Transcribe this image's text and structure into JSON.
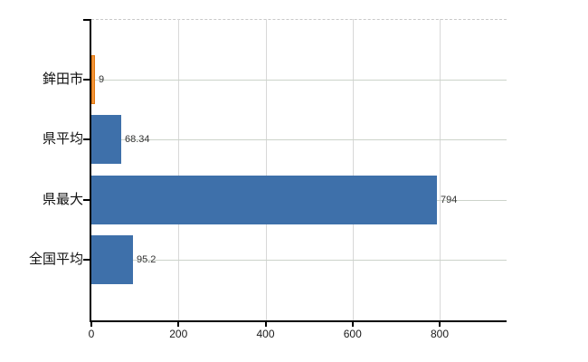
{
  "chart_data": {
    "type": "bar",
    "orientation": "horizontal",
    "title": "",
    "categories": [
      "鉾田市",
      "県平均",
      "県最大",
      "全国平均"
    ],
    "values": [
      9,
      68.34,
      794,
      95.2
    ],
    "value_labels": [
      "9",
      "68.34",
      "794",
      "95.2"
    ],
    "bar_colors": [
      "#f2953a",
      "#3e70aa",
      "#3e70aa",
      "#3e70aa"
    ],
    "bar_border_colors": [
      "#e0770f",
      "#3e70aa",
      "#3e70aa",
      "#3e70aa"
    ],
    "x_tick_labels": [
      "0",
      "200",
      "400",
      "600",
      "800"
    ],
    "x_tick_values": [
      0,
      200,
      400,
      600,
      800
    ],
    "xlim": [
      0,
      954
    ],
    "grid": true,
    "legend": false,
    "colors": {
      "axis": "#000000",
      "grid_vertical": "#d8d8d8",
      "grid_horizontal": "#ccd3ca",
      "plot_top_border": "#c9c9c9",
      "tick_text": "#1a1a1a",
      "value_text": "#333333",
      "highlight_bar": "#f2953a",
      "default_bar": "#3e70aa",
      "background": "#ffffff"
    }
  }
}
